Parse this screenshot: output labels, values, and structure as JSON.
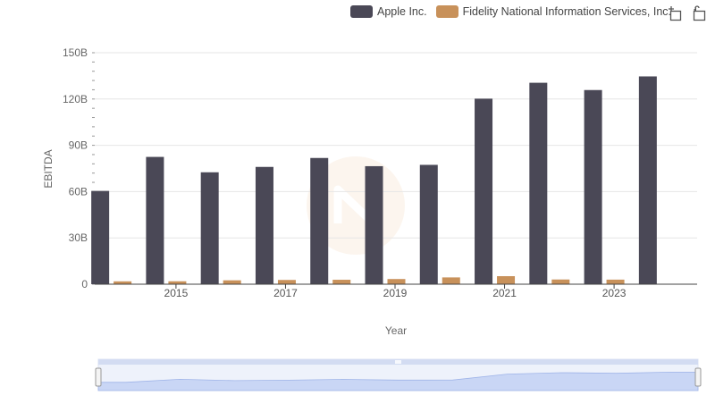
{
  "chart_data": {
    "type": "bar",
    "x": [
      2014,
      2015,
      2016,
      2017,
      2018,
      2019,
      2020,
      2021,
      2022,
      2023,
      2024
    ],
    "xticks": [
      2015,
      2017,
      2019,
      2021,
      2023
    ],
    "xlabel": "Year",
    "ylabel": "EBITDA",
    "ylim": [
      0,
      150000000000
    ],
    "yticks": [
      {
        "value": 0,
        "label": "0"
      },
      {
        "value": 30000000000,
        "label": "30B"
      },
      {
        "value": 60000000000,
        "label": "60B"
      },
      {
        "value": 90000000000,
        "label": "90B"
      },
      {
        "value": 120000000000,
        "label": "120B"
      },
      {
        "value": 150000000000,
        "label": "150B"
      }
    ],
    "grid": "horizontal",
    "legend_position": "top-right",
    "series": [
      {
        "name": "Apple Inc.",
        "color": "#4a4856",
        "values": [
          60450000000,
          82490000000,
          72520000000,
          76010000000,
          81800000000,
          76480000000,
          77340000000,
          120230000000,
          130540000000,
          125820000000,
          134660000000
        ]
      },
      {
        "name": "Fidelity National Information Services, Inc.",
        "color": "#c8915a",
        "values": [
          1850000000,
          1900000000,
          2520000000,
          2750000000,
          2880000000,
          3350000000,
          4400000000,
          5200000000,
          3050000000,
          2960000000,
          null
        ]
      }
    ],
    "navigator": {
      "series_values": [
        60450000000,
        82490000000,
        72520000000,
        76010000000,
        81800000000,
        76480000000,
        77340000000,
        120230000000,
        130540000000,
        125820000000,
        134660000000
      ]
    }
  },
  "icons": {
    "zoom": "zoom-in-icon",
    "reset": "reset-zoom-icon"
  }
}
